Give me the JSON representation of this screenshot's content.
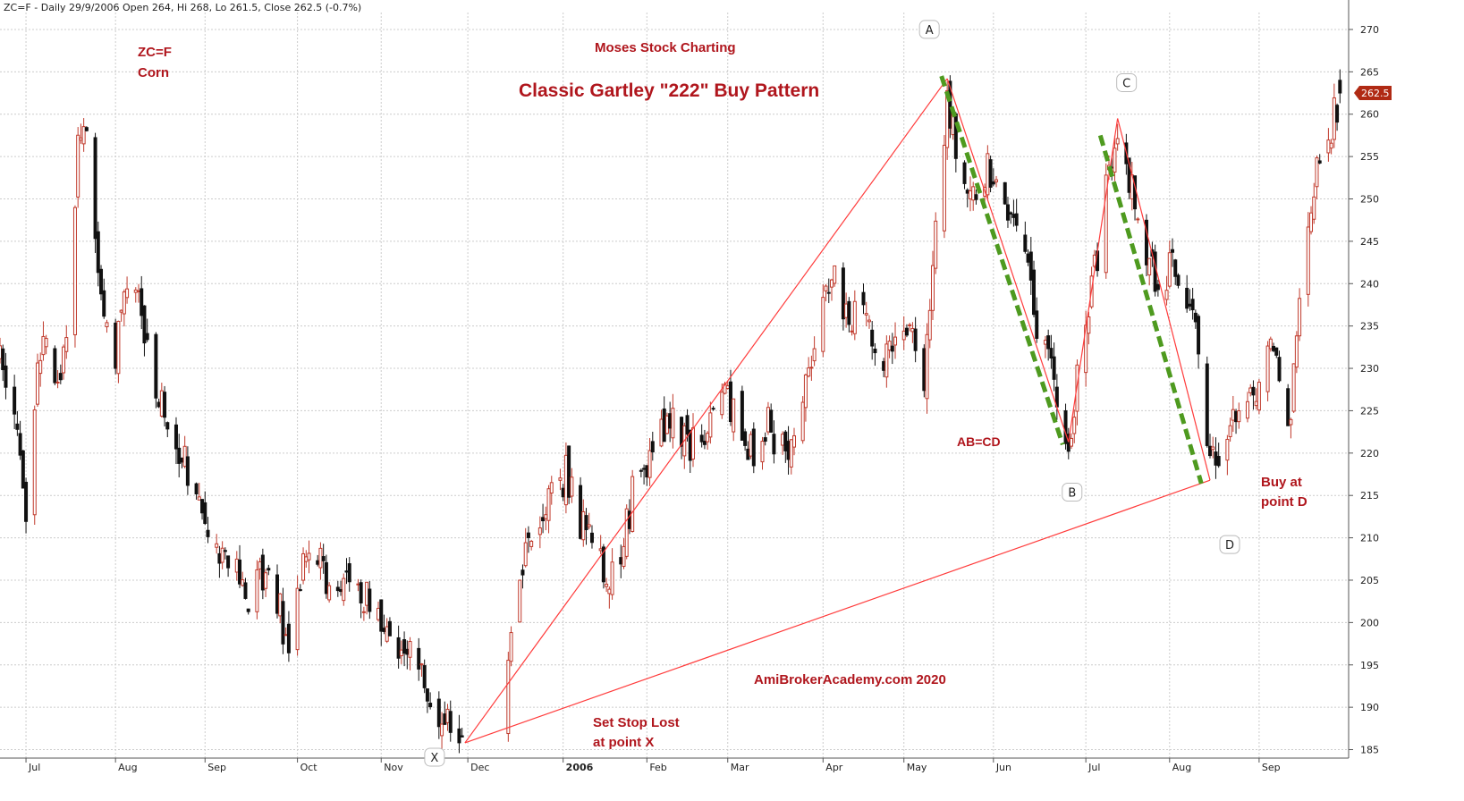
{
  "chart_data": {
    "type": "candlestick",
    "header": "ZC=F - Daily 29/9/2006 Open 264, Hi 268, Lo 261.5, Close 262.5 (-0.7%)",
    "annotations": {
      "symbol": "ZC=F",
      "name": "Corn",
      "brand": "Moses Stock Charting",
      "pattern": "Classic Gartley \"222\" Buy Pattern",
      "abcd": "AB=CD",
      "buy_line1": "Buy at",
      "buy_line2": "point D",
      "stop_line1": "Set Stop Lost",
      "stop_line2": "at point X",
      "watermark": "AmiBrokerAcademy.com 2020"
    },
    "last_price": "262.5",
    "y_axis": {
      "min": 184,
      "max": 272,
      "ticks": [
        185,
        190,
        195,
        200,
        205,
        210,
        215,
        220,
        225,
        230,
        235,
        240,
        245,
        250,
        255,
        260,
        265,
        270
      ]
    },
    "x_axis": {
      "range": [
        "2005-06-22",
        "2006-10-02"
      ],
      "labels": [
        {
          "label": "Jul",
          "date": "2005-07-01"
        },
        {
          "label": "Aug",
          "date": "2005-08-01"
        },
        {
          "label": "Sep",
          "date": "2005-09-01"
        },
        {
          "label": "Oct",
          "date": "2005-10-03"
        },
        {
          "label": "Nov",
          "date": "2005-11-01"
        },
        {
          "label": "Dec",
          "date": "2005-12-01"
        },
        {
          "label": "2006",
          "date": "2006-01-03"
        },
        {
          "label": "Feb",
          "date": "2006-02-01"
        },
        {
          "label": "Mar",
          "date": "2006-03-01"
        },
        {
          "label": "Apr",
          "date": "2006-04-03"
        },
        {
          "label": "May",
          "date": "2006-05-01"
        },
        {
          "label": "Jun",
          "date": "2006-06-01"
        },
        {
          "label": "Jul",
          "date": "2006-07-03"
        },
        {
          "label": "Aug",
          "date": "2006-08-01"
        },
        {
          "label": "Sep",
          "date": "2006-09-01"
        }
      ]
    },
    "pattern_points": [
      {
        "label": "X",
        "date": "2005-11-30",
        "price": 185.8
      },
      {
        "label": "A",
        "date": "2006-05-16",
        "price": 264.2
      },
      {
        "label": "B",
        "date": "2006-06-27",
        "price": 221.3
      },
      {
        "label": "C",
        "date": "2006-07-14",
        "price": 259.5
      },
      {
        "label": "D",
        "date": "2006-08-15",
        "price": 216.8
      }
    ],
    "lines": [
      {
        "from": "X",
        "to": "A"
      },
      {
        "from": "A",
        "to": "B"
      },
      {
        "from": "B",
        "to": "C"
      },
      {
        "from": "C",
        "to": "D"
      },
      {
        "from": "X",
        "to": "D"
      }
    ],
    "dashed_lines": [
      {
        "from": {
          "date": "2006-05-14",
          "price": 264.5
        },
        "to": {
          "date": "2006-06-25",
          "price": 221.0
        }
      },
      {
        "from": {
          "date": "2006-07-08",
          "price": 257.5
        },
        "to": {
          "date": "2006-08-12",
          "price": 216.4
        }
      }
    ],
    "price_path": [
      {
        "date": "2005-06-22",
        "price": 232
      },
      {
        "date": "2005-06-27",
        "price": 223
      },
      {
        "date": "2005-07-01",
        "price": 213
      },
      {
        "date": "2005-07-05",
        "price": 229
      },
      {
        "date": "2005-07-08",
        "price": 233
      },
      {
        "date": "2005-07-12",
        "price": 226
      },
      {
        "date": "2005-07-15",
        "price": 236
      },
      {
        "date": "2005-07-19",
        "price": 256
      },
      {
        "date": "2005-07-21",
        "price": 261
      },
      {
        "date": "2005-07-25",
        "price": 246
      },
      {
        "date": "2005-07-28",
        "price": 238
      },
      {
        "date": "2005-08-01",
        "price": 232
      },
      {
        "date": "2005-08-05",
        "price": 239
      },
      {
        "date": "2005-08-09",
        "price": 238
      },
      {
        "date": "2005-08-12",
        "price": 231
      },
      {
        "date": "2005-08-17",
        "price": 225
      },
      {
        "date": "2005-08-22",
        "price": 222
      },
      {
        "date": "2005-08-26",
        "price": 218
      },
      {
        "date": "2005-08-30",
        "price": 214
      },
      {
        "date": "2005-09-02",
        "price": 211
      },
      {
        "date": "2005-09-08",
        "price": 208
      },
      {
        "date": "2005-09-13",
        "price": 205
      },
      {
        "date": "2005-09-16",
        "price": 203
      },
      {
        "date": "2005-09-20",
        "price": 207
      },
      {
        "date": "2005-09-23",
        "price": 205
      },
      {
        "date": "2005-09-27",
        "price": 201
      },
      {
        "date": "2005-09-30",
        "price": 197
      },
      {
        "date": "2005-10-04",
        "price": 206
      },
      {
        "date": "2005-10-10",
        "price": 207
      },
      {
        "date": "2005-10-14",
        "price": 205
      },
      {
        "date": "2005-10-19",
        "price": 206
      },
      {
        "date": "2005-10-24",
        "price": 204
      },
      {
        "date": "2005-10-28",
        "price": 202
      },
      {
        "date": "2005-11-02",
        "price": 199
      },
      {
        "date": "2005-11-08",
        "price": 196
      },
      {
        "date": "2005-11-14",
        "price": 195
      },
      {
        "date": "2005-11-18",
        "price": 192
      },
      {
        "date": "2005-11-23",
        "price": 189
      },
      {
        "date": "2005-11-30",
        "price": 186
      },
      {
        "date": "2005-12-05",
        "price": 190
      },
      {
        "date": "2005-12-09",
        "price": 191
      },
      {
        "date": "2005-12-14",
        "price": 193
      },
      {
        "date": "2005-12-19",
        "price": 206
      },
      {
        "date": "2005-12-23",
        "price": 209
      },
      {
        "date": "2005-12-29",
        "price": 214
      },
      {
        "date": "2006-01-04",
        "price": 218
      },
      {
        "date": "2006-01-09",
        "price": 212
      },
      {
        "date": "2006-01-13",
        "price": 211
      },
      {
        "date": "2006-01-18",
        "price": 205
      },
      {
        "date": "2006-01-23",
        "price": 208
      },
      {
        "date": "2006-01-27",
        "price": 215
      },
      {
        "date": "2006-02-01",
        "price": 218
      },
      {
        "date": "2006-02-06",
        "price": 222
      },
      {
        "date": "2006-02-10",
        "price": 225
      },
      {
        "date": "2006-02-15",
        "price": 222
      },
      {
        "date": "2006-02-20",
        "price": 220
      },
      {
        "date": "2006-02-24",
        "price": 225
      },
      {
        "date": "2006-03-01",
        "price": 227
      },
      {
        "date": "2006-03-06",
        "price": 222
      },
      {
        "date": "2006-03-10",
        "price": 220
      },
      {
        "date": "2006-03-15",
        "price": 223
      },
      {
        "date": "2006-03-20",
        "price": 220
      },
      {
        "date": "2006-03-24",
        "price": 222
      },
      {
        "date": "2006-03-29",
        "price": 229
      },
      {
        "date": "2006-04-03",
        "price": 237
      },
      {
        "date": "2006-04-07",
        "price": 240
      },
      {
        "date": "2006-04-12",
        "price": 237
      },
      {
        "date": "2006-04-18",
        "price": 235
      },
      {
        "date": "2006-04-24",
        "price": 232
      },
      {
        "date": "2006-04-28",
        "price": 233
      },
      {
        "date": "2006-05-03",
        "price": 235
      },
      {
        "date": "2006-05-08",
        "price": 229
      },
      {
        "date": "2006-05-10",
        "price": 237
      },
      {
        "date": "2006-05-12",
        "price": 248
      },
      {
        "date": "2006-05-16",
        "price": 262
      },
      {
        "date": "2006-05-19",
        "price": 256
      },
      {
        "date": "2006-05-24",
        "price": 250
      },
      {
        "date": "2006-05-30",
        "price": 254
      },
      {
        "date": "2006-06-02",
        "price": 252
      },
      {
        "date": "2006-06-06",
        "price": 249
      },
      {
        "date": "2006-06-12",
        "price": 245
      },
      {
        "date": "2006-06-16",
        "price": 236
      },
      {
        "date": "2006-06-21",
        "price": 230
      },
      {
        "date": "2006-06-27",
        "price": 222
      },
      {
        "date": "2006-07-03",
        "price": 234
      },
      {
        "date": "2006-07-07",
        "price": 244
      },
      {
        "date": "2006-07-11",
        "price": 254
      },
      {
        "date": "2006-07-14",
        "price": 258
      },
      {
        "date": "2006-07-19",
        "price": 251
      },
      {
        "date": "2006-07-24",
        "price": 244
      },
      {
        "date": "2006-07-28",
        "price": 238
      },
      {
        "date": "2006-08-02",
        "price": 243
      },
      {
        "date": "2006-08-08",
        "price": 238
      },
      {
        "date": "2006-08-12",
        "price": 228
      },
      {
        "date": "2006-08-15",
        "price": 218
      },
      {
        "date": "2006-08-21",
        "price": 220
      },
      {
        "date": "2006-08-25",
        "price": 226
      },
      {
        "date": "2006-08-31",
        "price": 228
      },
      {
        "date": "2006-09-05",
        "price": 231
      },
      {
        "date": "2006-09-08",
        "price": 229
      },
      {
        "date": "2006-09-12",
        "price": 224
      },
      {
        "date": "2006-09-14",
        "price": 236
      },
      {
        "date": "2006-09-18",
        "price": 245
      },
      {
        "date": "2006-09-21",
        "price": 255
      },
      {
        "date": "2006-09-26",
        "price": 258
      },
      {
        "date": "2006-09-29",
        "price": 262.5
      }
    ],
    "gaps": [
      [
        "2005-11-29",
        "2005-12-15"
      ]
    ],
    "colors": {
      "up": "#c0392b",
      "down": "#111111",
      "line": "#ff3b3b",
      "dashed": "#4e9a1f",
      "price_badge": "#b02a14",
      "grid": "#cccccc"
    },
    "grid": true,
    "log_scale": false
  }
}
